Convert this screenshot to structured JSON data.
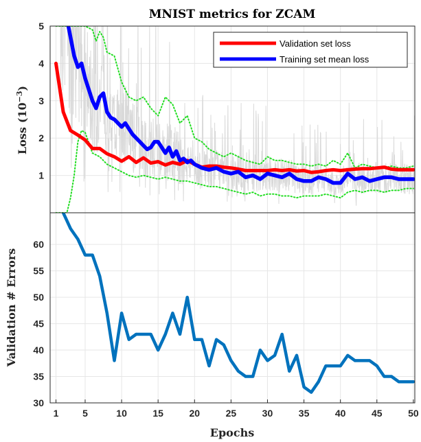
{
  "chart_data": [
    {
      "type": "line",
      "title": "MNIST metrics for ZCAM",
      "ylabel": "Loss (10⁻³)",
      "ylabel_main": "Loss",
      "ylabel_unit_base": "(10",
      "ylabel_unit_exp": "−3",
      "ylabel_unit_close": ")",
      "xlim": [
        0.2,
        50.2
      ],
      "ylim": [
        0,
        5
      ],
      "yticks": [
        "1",
        "2",
        "3",
        "4",
        "5"
      ],
      "grid": true,
      "legend_position": "top-right",
      "series": [
        {
          "name": "Validation set loss",
          "color": "#ff0000",
          "style": "solid-thick",
          "x": [
            1,
            2,
            3,
            4,
            5,
            6,
            7,
            8,
            9,
            10,
            11,
            12,
            13,
            14,
            15,
            16,
            17,
            18,
            19,
            20,
            21,
            22,
            23,
            24,
            25,
            26,
            27,
            28,
            29,
            30,
            31,
            32,
            33,
            34,
            35,
            36,
            37,
            38,
            39,
            40,
            41,
            42,
            43,
            44,
            45,
            46,
            47,
            48,
            49,
            50
          ],
          "y": [
            4.0,
            2.7,
            2.2,
            2.08,
            1.95,
            1.72,
            1.72,
            1.58,
            1.5,
            1.38,
            1.5,
            1.35,
            1.47,
            1.33,
            1.37,
            1.28,
            1.35,
            1.3,
            1.4,
            1.3,
            1.22,
            1.25,
            1.25,
            1.22,
            1.2,
            1.17,
            1.13,
            1.13,
            1.13,
            1.13,
            1.15,
            1.13,
            1.15,
            1.12,
            1.13,
            1.08,
            1.1,
            1.13,
            1.15,
            1.13,
            1.15,
            1.17,
            1.18,
            1.18,
            1.2,
            1.22,
            1.17,
            1.15,
            1.15,
            1.15
          ]
        },
        {
          "name": "Training set mean loss",
          "color": "#0000ff",
          "style": "solid-thick",
          "x": [
            2.7,
            3,
            3.5,
            4,
            4.5,
            5,
            5.5,
            6,
            6.5,
            7,
            7.5,
            8,
            8.5,
            9,
            9.5,
            10,
            10.5,
            11,
            11.5,
            12,
            12.5,
            13,
            13.5,
            14,
            14.5,
            15,
            15.5,
            16,
            16.5,
            17,
            17.5,
            18,
            18.5,
            19,
            19.5,
            20,
            21,
            22,
            23,
            24,
            25,
            26,
            27,
            28,
            29,
            30,
            31,
            32,
            33,
            34,
            35,
            36,
            37,
            38,
            39,
            40,
            41,
            42,
            43,
            44,
            45,
            46,
            47,
            48,
            49,
            50
          ],
          "y": [
            5.0,
            4.7,
            4.2,
            3.9,
            4.0,
            3.6,
            3.3,
            3.0,
            2.8,
            3.1,
            3.2,
            2.7,
            2.55,
            2.5,
            2.4,
            2.3,
            2.4,
            2.25,
            2.1,
            2.0,
            1.9,
            1.8,
            1.7,
            1.75,
            1.9,
            1.9,
            1.75,
            1.6,
            1.75,
            1.5,
            1.65,
            1.4,
            1.45,
            1.35,
            1.4,
            1.3,
            1.2,
            1.15,
            1.2,
            1.1,
            1.05,
            1.1,
            0.95,
            1.0,
            0.9,
            1.05,
            1.0,
            0.95,
            1.05,
            0.9,
            0.85,
            0.85,
            0.95,
            0.9,
            0.8,
            0.8,
            1.05,
            0.9,
            0.95,
            0.85,
            0.9,
            0.95,
            0.95,
            0.9,
            0.9,
            0.9
          ]
        },
        {
          "name": "",
          "color": "#22dd22",
          "style": "dotted",
          "x": [
            1,
            2,
            3,
            4,
            5,
            6,
            6.5,
            7,
            7.5,
            8,
            9,
            10,
            11,
            12,
            13,
            14,
            15,
            16,
            17,
            18,
            19,
            20,
            21,
            22,
            23,
            24,
            25,
            26,
            27,
            28,
            29,
            30,
            31,
            32,
            33,
            34,
            35,
            36,
            37,
            38,
            39,
            40,
            41,
            42,
            43,
            44,
            45,
            46,
            47,
            48,
            49,
            50
          ],
          "y": [
            5.0,
            5.0,
            5.0,
            5.0,
            5.0,
            4.9,
            4.6,
            4.85,
            4.7,
            4.3,
            4.2,
            3.5,
            3.1,
            3.0,
            3.1,
            2.8,
            2.6,
            3.1,
            2.9,
            2.4,
            2.6,
            2.0,
            1.9,
            1.7,
            1.6,
            1.5,
            1.6,
            1.5,
            1.4,
            1.35,
            1.3,
            1.5,
            1.4,
            1.4,
            1.35,
            1.3,
            1.3,
            1.25,
            1.3,
            1.25,
            1.4,
            1.3,
            1.6,
            1.2,
            1.3,
            1.25,
            1.2,
            1.2,
            1.25,
            1.2,
            1.2,
            1.25
          ]
        },
        {
          "name": "",
          "color": "#22dd22",
          "style": "dotted",
          "x": [
            1,
            2,
            2.5,
            3,
            3.5,
            4,
            4.5,
            5,
            6,
            7,
            8,
            9,
            10,
            11,
            12,
            13,
            14,
            15,
            16,
            17,
            18,
            19,
            20,
            21,
            22,
            23,
            24,
            25,
            26,
            27,
            28,
            29,
            30,
            31,
            32,
            33,
            34,
            35,
            36,
            37,
            38,
            39,
            40,
            41,
            42,
            43,
            44,
            45,
            46,
            47,
            48,
            49,
            50
          ],
          "y": [
            0.0,
            0.0,
            0.0,
            0.4,
            1.0,
            1.9,
            2.2,
            2.15,
            1.6,
            1.5,
            1.3,
            1.2,
            1.1,
            1.0,
            0.95,
            1.0,
            0.95,
            0.9,
            0.95,
            0.9,
            0.85,
            0.85,
            0.8,
            0.75,
            0.7,
            0.7,
            0.65,
            0.6,
            0.55,
            0.5,
            0.55,
            0.45,
            0.5,
            0.5,
            0.45,
            0.45,
            0.4,
            0.45,
            0.45,
            0.45,
            0.5,
            0.45,
            0.4,
            0.55,
            0.6,
            0.55,
            0.6,
            0.6,
            0.55,
            0.6,
            0.6,
            0.65,
            0.65
          ]
        }
      ]
    },
    {
      "type": "line",
      "xlabel": "Epochs",
      "ylabel": "Validation # Errors",
      "xlim": [
        0.2,
        50.2
      ],
      "ylim": [
        30,
        66
      ],
      "xticks": [
        "1",
        "5",
        "10",
        "15",
        "20",
        "25",
        "30",
        "35",
        "40",
        "45",
        "50"
      ],
      "yticks": [
        "30",
        "35",
        "40",
        "45",
        "50",
        "55",
        "60"
      ],
      "grid": true,
      "series": [
        {
          "name": "",
          "color": "#0072bd",
          "x": [
            2,
            3,
            4,
            5,
            6,
            7,
            8,
            9,
            10,
            11,
            12,
            13,
            14,
            15,
            16,
            17,
            18,
            19,
            20,
            21,
            22,
            23,
            24,
            25,
            26,
            27,
            28,
            29,
            30,
            31,
            32,
            33,
            34,
            35,
            36,
            37,
            38,
            39,
            40,
            41,
            42,
            43,
            44,
            45,
            46,
            47,
            48,
            49,
            50
          ],
          "y": [
            66,
            63,
            61,
            58,
            58,
            54,
            47,
            38,
            47,
            42,
            43,
            43,
            43,
            40,
            43,
            47,
            43,
            50,
            42,
            42,
            37,
            42,
            41,
            38,
            36,
            35,
            35,
            40,
            38,
            39,
            43,
            36,
            39,
            33,
            32,
            34,
            37,
            37,
            37,
            39,
            38,
            38,
            38,
            37,
            35,
            35,
            34,
            34,
            34
          ]
        }
      ]
    }
  ]
}
